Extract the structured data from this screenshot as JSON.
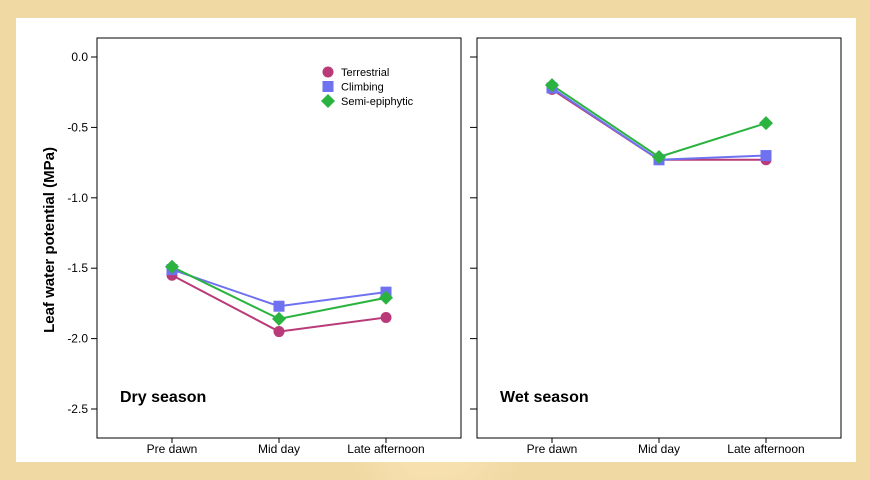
{
  "chart_data": {
    "type": "line",
    "ylabel": "Leaf water potential (MPa)",
    "ylim": [
      -2.6,
      0.05
    ],
    "yticks": [
      "0.0",
      "-0.5",
      "-1.0",
      "-1.5",
      "-2.0",
      "-2.5"
    ],
    "ytick_values": [
      0.0,
      -0.5,
      -1.0,
      -1.5,
      -2.0,
      -2.5
    ],
    "categories": [
      "Pre dawn",
      "Mid day",
      "Late afternoon"
    ],
    "legend": {
      "position": "top-right of left panel",
      "entries": [
        {
          "name": "Terrestrial",
          "color": "#b93a78",
          "marker": "circle"
        },
        {
          "name": "Climbing",
          "color": "#6e72f0",
          "marker": "square"
        },
        {
          "name": "Semi-epiphytic",
          "color": "#2bb340",
          "marker": "diamond"
        }
      ]
    },
    "panels": [
      {
        "label": "Dry season",
        "series": [
          {
            "name": "Terrestrial",
            "values": [
              -1.55,
              -1.95,
              -1.85
            ]
          },
          {
            "name": "Climbing",
            "values": [
              -1.51,
              -1.77,
              -1.67
            ]
          },
          {
            "name": "Semi-epiphytic",
            "values": [
              -1.49,
              -1.86,
              -1.71
            ]
          }
        ]
      },
      {
        "label": "Wet season",
        "series": [
          {
            "name": "Terrestrial",
            "values": [
              -0.23,
              -0.73,
              -0.73
            ]
          },
          {
            "name": "Climbing",
            "values": [
              -0.22,
              -0.73,
              -0.7
            ]
          },
          {
            "name": "Semi-epiphytic",
            "values": [
              -0.2,
              -0.71,
              -0.47
            ]
          }
        ]
      }
    ]
  }
}
